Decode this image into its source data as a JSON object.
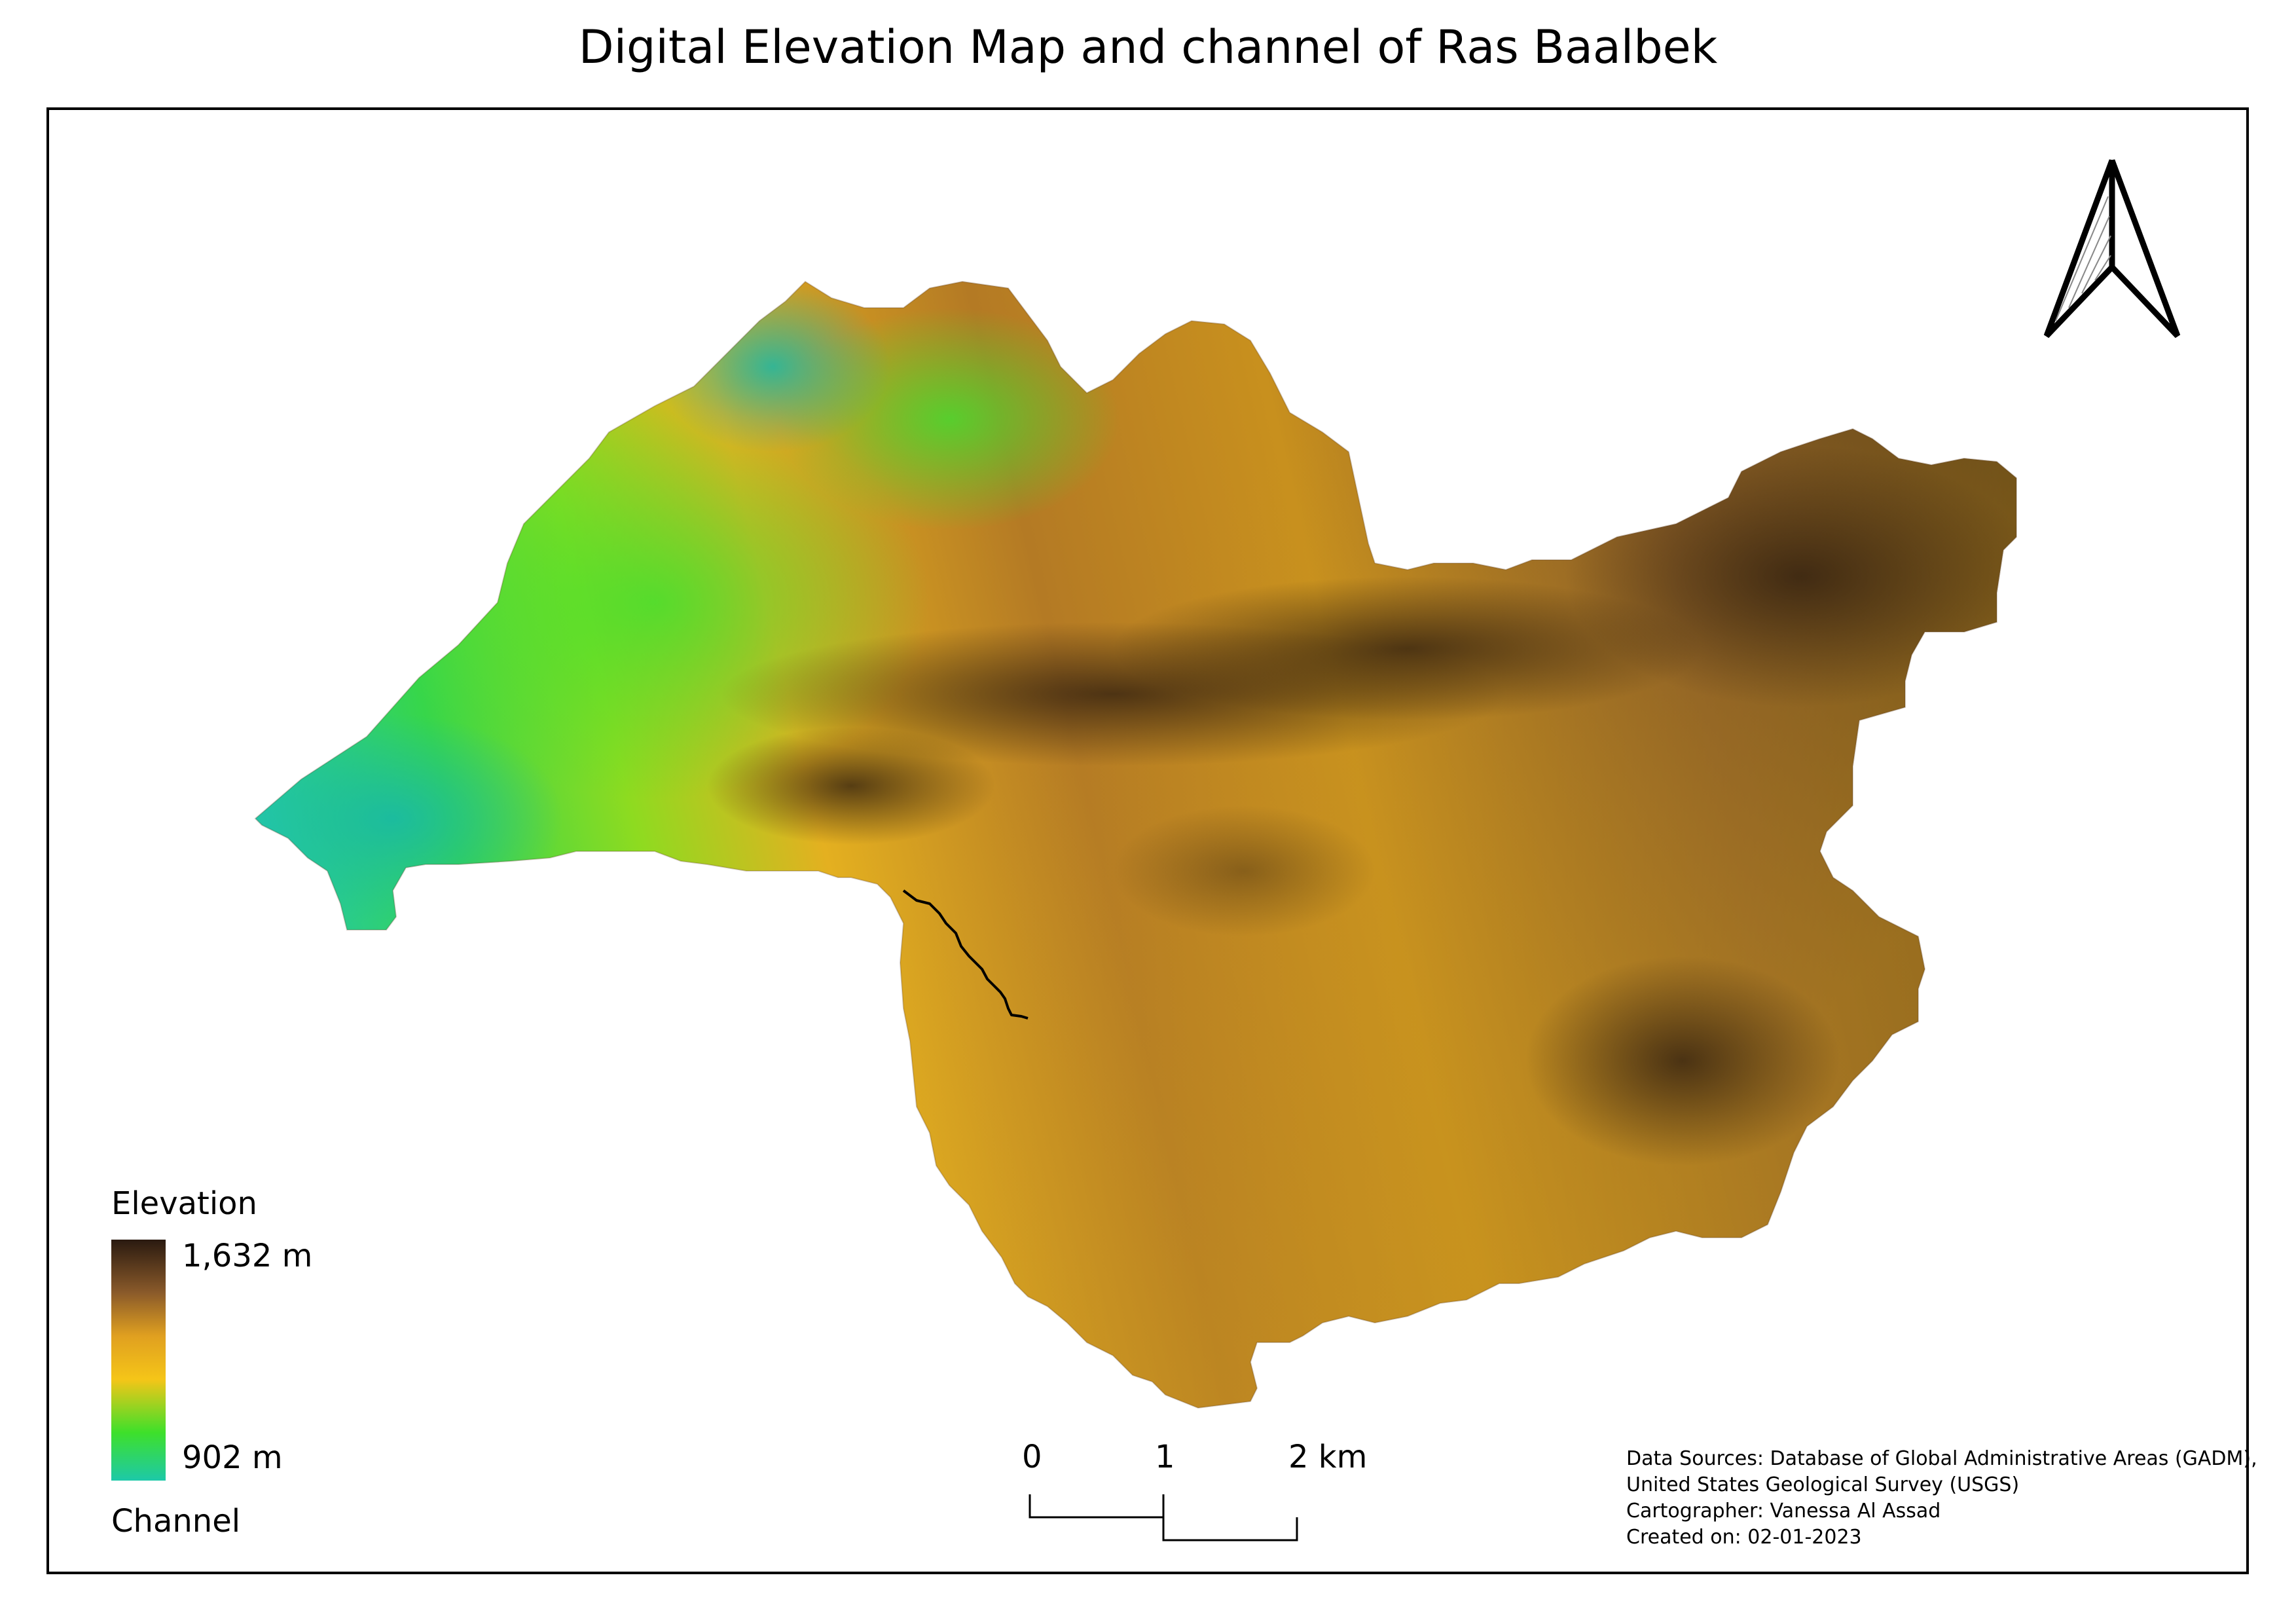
{
  "title": "Digital Elevation Map and channel of Ras Baalbek",
  "legend": {
    "title": "Elevation",
    "max_label": "1,632 m",
    "min_label": "902 m",
    "channel_label": "Channel",
    "ramp_colors": [
      "#2a1a10",
      "#8a5a2a",
      "#e0a020",
      "#f5c518",
      "#3ee02a",
      "#1dc9a8"
    ]
  },
  "elevation": {
    "max_m": 1632,
    "min_m": 902
  },
  "scale_bar": {
    "labels": [
      "0",
      "1",
      "2 km"
    ]
  },
  "credits": [
    "Data Sources: Database of Global Administrative Areas (GADM),",
    "United States Geological Survey (USGS)",
    "Cartographer: Vanessa Al Assad",
    "Created on: 02-01-2023"
  ],
  "icons": {
    "north_arrow": "north-arrow-icon"
  }
}
